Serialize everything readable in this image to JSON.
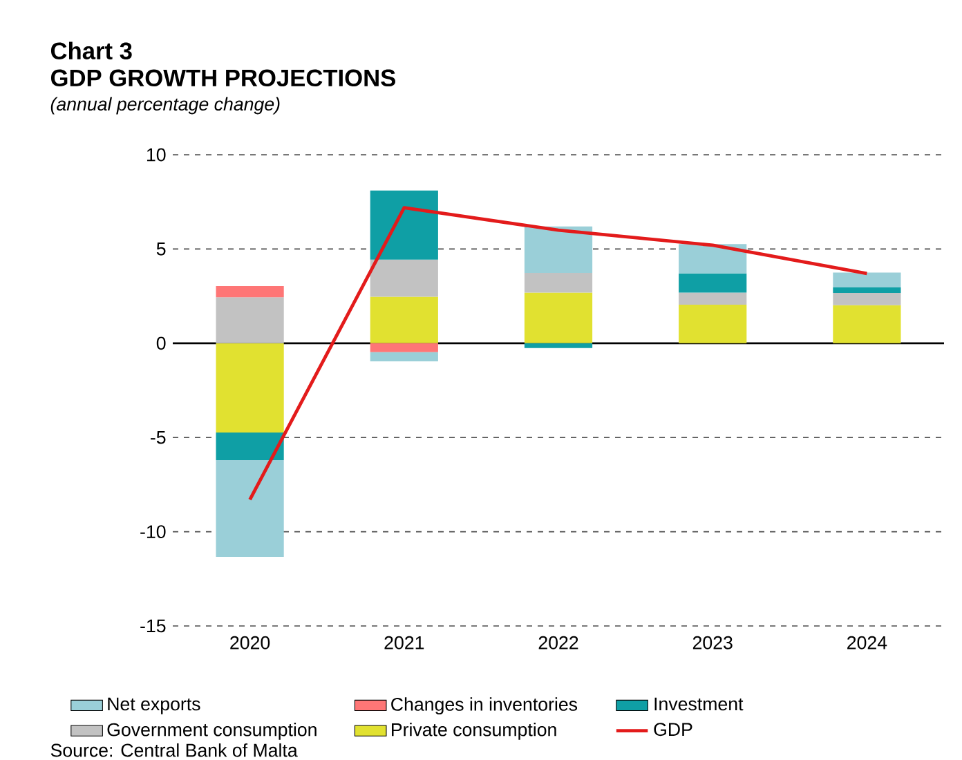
{
  "chart_data": {
    "type": "bar",
    "title": "GDP GROWTH PROJECTIONS",
    "subtitle": "(annual percentage change)",
    "annotations": [
      "Chart 3",
      "Source: Central Bank of Malta"
    ],
    "categories": [
      "2020",
      "2021",
      "2022",
      "2023",
      "2024"
    ],
    "stacked": true,
    "series": [
      {
        "name": "Private consumption",
        "color": "#e1e130",
        "values": [
          -4.74,
          2.47,
          2.69,
          2.05,
          2.02
        ]
      },
      {
        "name": "Government consumption",
        "color": "#c2c2c2",
        "values": [
          2.44,
          1.97,
          1.04,
          0.64,
          0.65
        ]
      },
      {
        "name": "Investment",
        "color": "#0f9fa5",
        "values": [
          -1.46,
          3.66,
          -0.25,
          1.01,
          0.29
        ]
      },
      {
        "name": "Changes in inventories",
        "color": "#fe7676",
        "values": [
          0.6,
          -0.47,
          null,
          null,
          null
        ]
      },
      {
        "name": "Net exports",
        "color": "#9acfd8",
        "values": [
          -5.13,
          -0.49,
          2.47,
          1.56,
          0.79
        ]
      },
      {
        "name": "GDP",
        "type": "line",
        "color": "#e31b1b",
        "values": [
          -8.3,
          7.19,
          6.0,
          5.2,
          3.7
        ]
      }
    ],
    "ylim": [
      -15,
      10
    ],
    "yticks": [
      -15,
      -10,
      -5,
      0,
      5,
      10
    ],
    "grid": "y",
    "legend": "bottom"
  }
}
